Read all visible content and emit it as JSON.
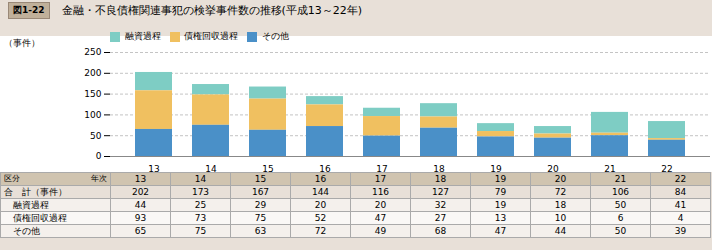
{
  "chart_data": {
    "type": "bar",
    "stacked": true,
    "title": "金融・不良債権関連事犯の検挙事件数の推移(平成13～22年)",
    "annotations": [
      "図1-22"
    ],
    "ylabel": "（事件）",
    "categories": [
      "13",
      "14",
      "15",
      "16",
      "17",
      "18",
      "19",
      "20",
      "21",
      "22"
    ],
    "series": [
      {
        "name": "融資過程",
        "color": "#7ecdc4",
        "values": [
          44,
          25,
          29,
          20,
          20,
          32,
          19,
          18,
          50,
          41
        ]
      },
      {
        "name": "債権回収過程",
        "color": "#f0c060",
        "values": [
          93,
          73,
          75,
          52,
          47,
          27,
          13,
          10,
          6,
          4
        ]
      },
      {
        "name": "その他",
        "color": "#4a90c8",
        "values": [
          65,
          75,
          63,
          72,
          49,
          68,
          47,
          44,
          50,
          39
        ]
      }
    ],
    "ylim": [
      0,
      250
    ],
    "yticks": [
      0,
      50,
      100,
      150,
      200,
      250
    ],
    "grid": true,
    "legend": "top",
    "table": {
      "corner": [
        "区分",
        "年次"
      ],
      "rows": [
        {
          "label": "合　計（事件）",
          "values": [
            202,
            173,
            167,
            144,
            116,
            127,
            79,
            72,
            106,
            84
          ]
        },
        {
          "label": "融資過程",
          "values": [
            44,
            25,
            29,
            20,
            20,
            32,
            19,
            18,
            50,
            41
          ]
        },
        {
          "label": "債権回収過程",
          "values": [
            93,
            73,
            75,
            52,
            47,
            27,
            13,
            10,
            6,
            4
          ]
        },
        {
          "label": "その他",
          "values": [
            65,
            75,
            63,
            72,
            49,
            68,
            47,
            44,
            50,
            39
          ]
        }
      ]
    }
  }
}
